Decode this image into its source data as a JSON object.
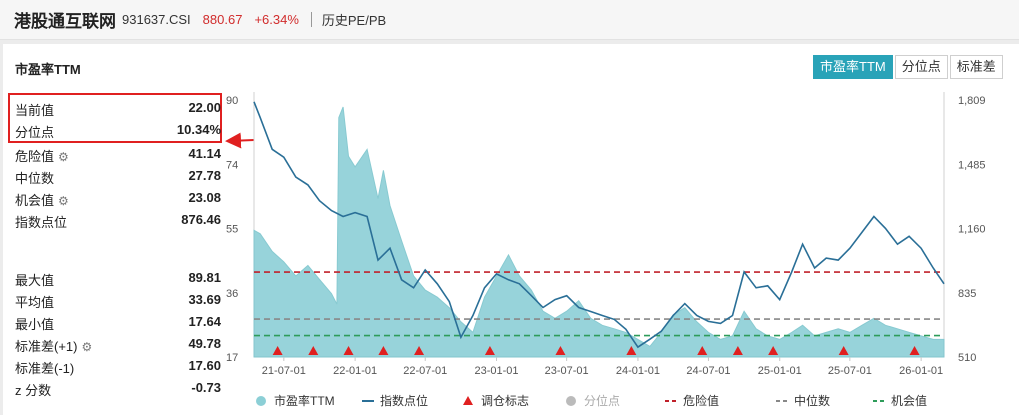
{
  "header": {
    "name": "港股通互联网",
    "code": "931637.CSI",
    "price": "880.67",
    "change": "+6.34%",
    "tab": "历史PE/PB"
  },
  "panel": {
    "title": "市盈率TTM",
    "buttons": [
      "市盈率TTM",
      "分位点",
      "标准差"
    ],
    "active_button": "市盈率TTM"
  },
  "stats": {
    "current": {
      "label": "当前值",
      "value": "22.00"
    },
    "percentile": {
      "label": "分位点",
      "value": "10.34%"
    },
    "danger": {
      "label": "危险值",
      "value": "41.14"
    },
    "median": {
      "label": "中位数",
      "value": "27.78"
    },
    "opportunity": {
      "label": "机会值",
      "value": "23.08"
    },
    "index_point": {
      "label": "指数点位",
      "value": "876.46"
    },
    "max": {
      "label": "最大值",
      "value": "89.81"
    },
    "mean": {
      "label": "平均值",
      "value": "33.69"
    },
    "min": {
      "label": "最小值",
      "value": "17.64"
    },
    "std_plus": {
      "label": "标准差(+1)",
      "value": "49.78"
    },
    "std_minus": {
      "label": "标准差(-1)",
      "value": "17.60"
    },
    "zscore": {
      "label": "z 分数",
      "value": "-0.73"
    }
  },
  "colors": {
    "area": "#8ccfd6",
    "index_line": "#2a6f97",
    "danger": "#c0202a",
    "median": "#888888",
    "opportunity": "#2e9c5a",
    "marker": "#e02020",
    "accent": "#29a3b8"
  },
  "chart_data": {
    "type": "area",
    "x_ticks": [
      "21-07-01",
      "22-01-01",
      "22-07-01",
      "23-01-01",
      "23-07-01",
      "24-01-01",
      "24-07-01",
      "25-01-01",
      "25-07-01",
      "26-01-01"
    ],
    "y_left_ticks": [
      "90",
      "74",
      "55",
      "36",
      "17"
    ],
    "y_right_ticks": [
      "1,809",
      "1,485",
      "1,160",
      "835",
      "510"
    ],
    "y_left_range": [
      17,
      90
    ],
    "y_right_range": [
      510,
      1809
    ],
    "reference_lines": {
      "danger": 41.14,
      "median": 27.78,
      "opportunity": 23.08
    },
    "pe_series": {
      "name": "市盈率TTM",
      "points": [
        [
          "21-04-15",
          53
        ],
        [
          "21-05-01",
          52
        ],
        [
          "21-06-01",
          47
        ],
        [
          "21-07-01",
          44
        ],
        [
          "21-08-01",
          40
        ],
        [
          "21-09-01",
          43
        ],
        [
          "21-10-01",
          39
        ],
        [
          "21-11-01",
          35
        ],
        [
          "21-11-15",
          32
        ],
        [
          "21-11-20",
          85
        ],
        [
          "21-12-01",
          88
        ],
        [
          "21-12-15",
          74
        ],
        [
          "22-01-01",
          71
        ],
        [
          "22-02-01",
          76
        ],
        [
          "22-03-01",
          62
        ],
        [
          "22-03-15",
          70
        ],
        [
          "22-04-01",
          60
        ],
        [
          "22-05-01",
          50
        ],
        [
          "22-06-01",
          40
        ],
        [
          "22-07-01",
          36
        ],
        [
          "22-08-01",
          34
        ],
        [
          "22-09-01",
          31
        ],
        [
          "22-10-01",
          27
        ],
        [
          "22-11-01",
          24
        ],
        [
          "22-12-01",
          34
        ],
        [
          "23-01-01",
          40
        ],
        [
          "23-02-01",
          46
        ],
        [
          "23-03-01",
          40
        ],
        [
          "23-04-01",
          36
        ],
        [
          "23-05-01",
          30
        ],
        [
          "23-06-01",
          28
        ],
        [
          "23-07-01",
          30
        ],
        [
          "23-08-01",
          33
        ],
        [
          "23-09-01",
          28
        ],
        [
          "23-10-01",
          26
        ],
        [
          "23-11-01",
          25
        ],
        [
          "23-12-01",
          24
        ],
        [
          "24-01-01",
          22
        ],
        [
          "24-02-01",
          20
        ],
        [
          "24-03-01",
          24
        ],
        [
          "24-04-01",
          29
        ],
        [
          "24-05-01",
          31
        ],
        [
          "24-06-01",
          27
        ],
        [
          "24-07-01",
          24
        ],
        [
          "24-08-01",
          22
        ],
        [
          "24-09-01",
          23
        ],
        [
          "24-10-01",
          30
        ],
        [
          "24-11-01",
          25
        ],
        [
          "24-12-01",
          23
        ],
        [
          "25-01-01",
          22
        ],
        [
          "25-02-01",
          24
        ],
        [
          "25-03-01",
          26
        ],
        [
          "25-04-01",
          23
        ],
        [
          "25-05-01",
          24
        ],
        [
          "25-06-01",
          25
        ],
        [
          "25-07-01",
          24
        ],
        [
          "25-08-01",
          26
        ],
        [
          "25-09-01",
          28
        ],
        [
          "25-10-01",
          26
        ],
        [
          "25-11-01",
          25
        ],
        [
          "25-12-01",
          24
        ],
        [
          "26-01-01",
          23
        ],
        [
          "26-02-01",
          22
        ],
        [
          "26-03-01",
          22
        ]
      ]
    },
    "index_series": {
      "name": "指数点位",
      "points": [
        [
          "21-04-15",
          1800
        ],
        [
          "21-05-01",
          1720
        ],
        [
          "21-06-01",
          1560
        ],
        [
          "21-07-01",
          1520
        ],
        [
          "21-08-01",
          1420
        ],
        [
          "21-09-01",
          1380
        ],
        [
          "21-10-01",
          1300
        ],
        [
          "21-11-01",
          1250
        ],
        [
          "21-12-01",
          1220
        ],
        [
          "22-01-01",
          1240
        ],
        [
          "22-02-01",
          1220
        ],
        [
          "22-03-01",
          1000
        ],
        [
          "22-04-01",
          1060
        ],
        [
          "22-05-01",
          900
        ],
        [
          "22-06-01",
          860
        ],
        [
          "22-07-01",
          950
        ],
        [
          "22-08-01",
          880
        ],
        [
          "22-09-01",
          790
        ],
        [
          "22-10-01",
          610
        ],
        [
          "22-11-01",
          720
        ],
        [
          "22-12-01",
          860
        ],
        [
          "23-01-01",
          930
        ],
        [
          "23-02-01",
          900
        ],
        [
          "23-03-01",
          880
        ],
        [
          "23-04-01",
          820
        ],
        [
          "23-05-01",
          760
        ],
        [
          "23-06-01",
          800
        ],
        [
          "23-07-01",
          820
        ],
        [
          "23-08-01",
          760
        ],
        [
          "23-09-01",
          740
        ],
        [
          "23-10-01",
          720
        ],
        [
          "23-11-01",
          700
        ],
        [
          "23-12-01",
          650
        ],
        [
          "24-01-01",
          560
        ],
        [
          "24-02-01",
          600
        ],
        [
          "24-03-01",
          640
        ],
        [
          "24-04-01",
          720
        ],
        [
          "24-05-01",
          780
        ],
        [
          "24-06-01",
          720
        ],
        [
          "24-07-01",
          690
        ],
        [
          "24-08-01",
          680
        ],
        [
          "24-09-01",
          720
        ],
        [
          "24-10-01",
          940
        ],
        [
          "24-11-01",
          860
        ],
        [
          "24-12-01",
          870
        ],
        [
          "25-01-01",
          800
        ],
        [
          "25-02-01",
          940
        ],
        [
          "25-03-01",
          1080
        ],
        [
          "25-04-01",
          960
        ],
        [
          "25-05-01",
          1010
        ],
        [
          "25-06-01",
          1000
        ],
        [
          "25-07-01",
          1060
        ],
        [
          "25-08-01",
          1140
        ],
        [
          "25-09-01",
          1220
        ],
        [
          "25-10-01",
          1160
        ],
        [
          "25-11-01",
          1080
        ],
        [
          "25-12-01",
          1120
        ],
        [
          "26-01-01",
          1060
        ],
        [
          "26-02-01",
          960
        ],
        [
          "26-03-01",
          880
        ]
      ]
    },
    "rebalance_markers": [
      "21-06-15",
      "21-09-15",
      "21-12-15",
      "22-03-15",
      "22-06-15",
      "22-12-15",
      "23-06-15",
      "23-12-15",
      "24-06-15",
      "24-09-15",
      "24-12-15",
      "25-06-15",
      "25-12-15"
    ],
    "legend": [
      {
        "label": "市盈率TTM",
        "kind": "area-dot"
      },
      {
        "label": "指数点位",
        "kind": "line"
      },
      {
        "label": "调仓标志",
        "kind": "triangle"
      },
      {
        "label": "分位点",
        "kind": "gray-dot"
      },
      {
        "label": "危险值",
        "kind": "dash-danger"
      },
      {
        "label": "中位数",
        "kind": "dash-median"
      },
      {
        "label": "机会值",
        "kind": "dash-opportunity"
      }
    ]
  }
}
